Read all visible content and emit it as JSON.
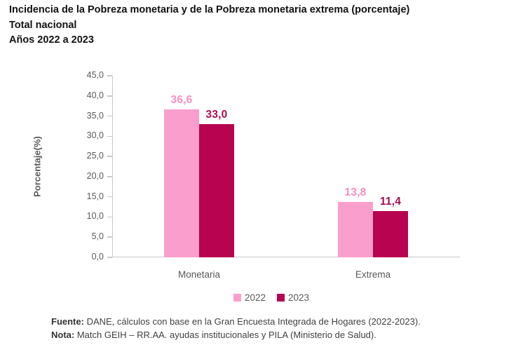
{
  "header": {
    "title": "Incidencia de la Pobreza monetaria y de la Pobreza monetaria extrema (porcentaje)",
    "subtitle1": "Total nacional",
    "subtitle2": "Años 2022 a 2023"
  },
  "chart_data": {
    "type": "bar",
    "title": "Incidencia de la Pobreza monetaria y de la Pobreza monetaria extrema (porcentaje)",
    "subtitle": [
      "Total nacional",
      "Años 2022 a 2023"
    ],
    "categories": [
      "Monetaria",
      "Extrema"
    ],
    "series": [
      {
        "name": "2022",
        "values": [
          36.6,
          13.8
        ],
        "labels": [
          "36,6",
          "13,8"
        ],
        "color": "#FA9ECD",
        "label_color": "#F78FC2"
      },
      {
        "name": "2023",
        "values": [
          33.0,
          11.4
        ],
        "labels": [
          "33,0",
          "11,4"
        ],
        "color": "#B80350",
        "label_color": "#A60D53"
      }
    ],
    "xlabel": "",
    "ylabel": "Porcentaje(%)",
    "ylim": [
      0,
      45
    ],
    "ytick_labels": [
      "45,0",
      "40,0",
      "35,0",
      "30,0",
      "25,0",
      "20,0",
      "15,0",
      "10,0",
      "5,0",
      "0,0"
    ],
    "grid": false,
    "legend_position": "bottom",
    "axis_line_color": "#C9C9C9",
    "axis_text_color": "#595959"
  },
  "footer": {
    "fuente_label": "Fuente:",
    "fuente_text": " DANE, cálculos con base en la Gran Encuesta Integrada de Hogares (2022-2023).",
    "nota_label": "Nota:",
    "nota_text": " Match GEIH – RR.AA. ayudas institucionales y PILA (Ministerio de Salud)."
  }
}
